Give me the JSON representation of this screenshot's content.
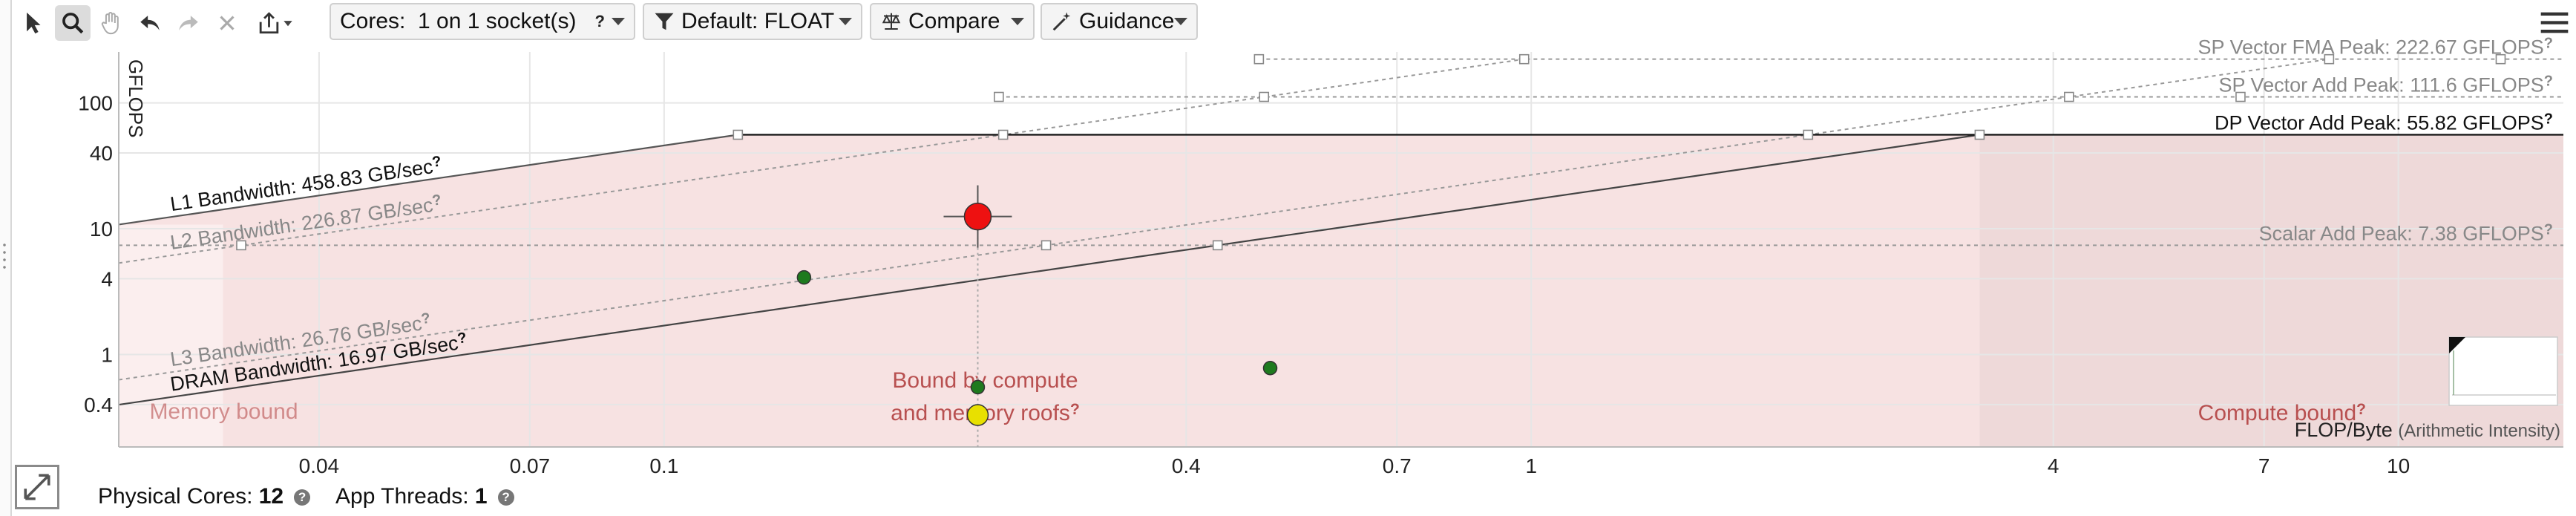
{
  "toolbar": {
    "tools": [
      "select-tool-icon",
      "zoom-tool-icon",
      "pan-tool-icon",
      "undo-icon",
      "redo-icon",
      "clear-icon",
      "export-icon"
    ],
    "cores_label": "Cores:",
    "cores_value": "1 on 1 socket(s)",
    "cores_help": "?",
    "filter_label": "Default: FLOAT",
    "compare_label": "Compare",
    "guidance_label": "Guidance"
  },
  "footer": {
    "physical_cores_label": "Physical Cores:",
    "physical_cores_value": "12",
    "app_threads_label": "App Threads:",
    "app_threads_value": "1"
  },
  "chart_data": {
    "type": "scatter",
    "subtype": "roofline",
    "xlabel": "FLOP/Byte",
    "xlabel_note": "(Arithmetic Intensity)",
    "ylabel": "GFLOPS",
    "x_scale": "log",
    "y_scale": "log",
    "xlim": [
      0.0235,
      15.5
    ],
    "ylim": [
      0.184,
      254
    ],
    "x_ticks": [
      0.04,
      0.07,
      0.1,
      0.4,
      0.7,
      1,
      4,
      7,
      10
    ],
    "x_tick_labels": [
      "0.04",
      "0.07",
      "0.1",
      "0.4",
      "0.7",
      "1",
      "4",
      "7",
      "10"
    ],
    "y_ticks": [
      0.4,
      1,
      4,
      10,
      40,
      100
    ],
    "y_tick_labels": [
      "0.4",
      "1",
      "4",
      "10",
      "40",
      "100"
    ],
    "grid": true,
    "memory_roofs": [
      {
        "name": "L1 Bandwidth: 458.83 GB/sec",
        "gbps": 458.83,
        "style": "solid",
        "color": "#555555"
      },
      {
        "name": "L2 Bandwidth: 226.87 GB/sec",
        "gbps": 226.87,
        "style": "dotted",
        "color": "#999999"
      },
      {
        "name": "L3 Bandwidth: 26.76 GB/sec",
        "gbps": 26.76,
        "style": "dotted",
        "color": "#999999"
      },
      {
        "name": "DRAM Bandwidth: 16.97 GB/sec",
        "gbps": 16.97,
        "style": "solid",
        "color": "#444444"
      }
    ],
    "compute_roofs": [
      {
        "name": "SP Vector FMA Peak: 222.67 GFLOPS",
        "gflops": 222.67,
        "style": "dotted",
        "color": "#999999"
      },
      {
        "name": "SP Vector Add Peak: 111.6 GFLOPS",
        "gflops": 111.6,
        "style": "dotted",
        "color": "#999999"
      },
      {
        "name": "DP Vector Add Peak: 55.82 GFLOPS",
        "gflops": 55.82,
        "style": "solid",
        "color": "#111111"
      },
      {
        "name": "Scalar Add Peak: 7.38 GFLOPS",
        "gflops": 7.38,
        "style": "dotted",
        "color": "#999999"
      }
    ],
    "points": [
      {
        "x": 0.23,
        "y": 12.5,
        "color": "#ee1111",
        "size": "large",
        "selected": true
      },
      {
        "x": 0.145,
        "y": 4.1,
        "color": "#1e7a1e",
        "size": "small"
      },
      {
        "x": 0.5,
        "y": 0.78,
        "color": "#1e7a1e",
        "size": "small"
      },
      {
        "x": 0.23,
        "y": 0.55,
        "color": "#1e7a1e",
        "size": "small"
      },
      {
        "x": 0.23,
        "y": 0.33,
        "color": "#e8e000",
        "size": "medium"
      }
    ],
    "regions": [
      {
        "label": "Memory bound",
        "color": "#f7dede"
      },
      {
        "label": "Bound by compute and memory roofs",
        "color": "#f7e2e2"
      },
      {
        "label": "Compute bound",
        "color": "#eed9d9"
      }
    ],
    "annotations": [
      "Bound by compute",
      "and memory roofs",
      "Compute bound",
      "Memory bound"
    ],
    "help_marker": "?",
    "colors": {
      "region_text": "#b85050",
      "gridline": "#e6e6e6"
    }
  }
}
